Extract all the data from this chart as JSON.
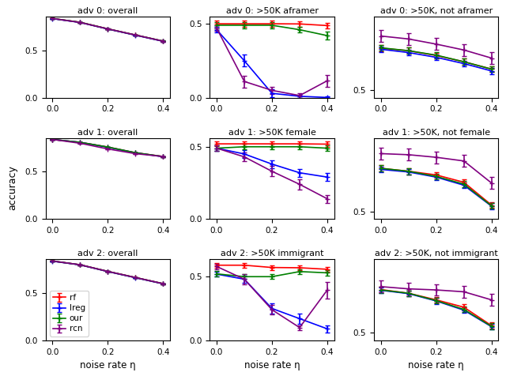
{
  "x": [
    0.0,
    0.1,
    0.2,
    0.3,
    0.4
  ],
  "titles": [
    [
      "adv 0: overall",
      "adv 0: >50K aframer",
      "adv 0: >50K, not aframer"
    ],
    [
      "adv 1: overall",
      "adv 1: >50K female",
      "adv 1: >50K, not female"
    ],
    [
      "adv 2: overall",
      "adv 2: >50K immigrant",
      "adv 2: >50K, not immigrant"
    ]
  ],
  "colors": [
    "red",
    "blue",
    "green",
    "purple"
  ],
  "labels": [
    "rf",
    "lreg",
    "our",
    "rcn"
  ],
  "ylabel": "accuracy",
  "xlabel": "noise rate η",
  "data": {
    "row0": {
      "col0": {
        "rf": {
          "y": [
            0.84,
            0.8,
            0.73,
            0.665,
            0.6
          ],
          "e": [
            0.004,
            0.004,
            0.004,
            0.004,
            0.004
          ]
        },
        "lreg": {
          "y": [
            0.838,
            0.798,
            0.728,
            0.663,
            0.598
          ],
          "e": [
            0.004,
            0.004,
            0.004,
            0.004,
            0.004
          ]
        },
        "our": {
          "y": [
            0.84,
            0.8,
            0.73,
            0.665,
            0.601
          ],
          "e": [
            0.004,
            0.004,
            0.004,
            0.004,
            0.004
          ]
        },
        "rcn": {
          "y": [
            0.84,
            0.798,
            0.73,
            0.665,
            0.6
          ],
          "e": [
            0.004,
            0.004,
            0.004,
            0.004,
            0.004
          ]
        }
      },
      "col1": {
        "rf": {
          "y": [
            0.5,
            0.5,
            0.5,
            0.499,
            0.488
          ],
          "e": [
            0.02,
            0.02,
            0.02,
            0.02,
            0.02
          ]
        },
        "lreg": {
          "y": [
            0.46,
            0.25,
            0.03,
            0.01,
            0.002
          ],
          "e": [
            0.02,
            0.04,
            0.025,
            0.01,
            0.01
          ]
        },
        "our": {
          "y": [
            0.49,
            0.49,
            0.49,
            0.46,
            0.42
          ],
          "e": [
            0.02,
            0.02,
            0.02,
            0.02,
            0.025
          ]
        },
        "rcn": {
          "y": [
            0.47,
            0.11,
            0.05,
            0.015,
            0.115
          ],
          "e": [
            0.02,
            0.04,
            0.025,
            0.015,
            0.04
          ]
        }
      },
      "col2": {
        "rf": {
          "y": [
            0.615,
            0.608,
            0.595,
            0.578,
            0.558
          ],
          "e": [
            0.008,
            0.008,
            0.008,
            0.008,
            0.008
          ]
        },
        "lreg": {
          "y": [
            0.612,
            0.603,
            0.59,
            0.573,
            0.553
          ],
          "e": [
            0.008,
            0.008,
            0.008,
            0.008,
            0.008
          ]
        },
        "our": {
          "y": [
            0.616,
            0.608,
            0.596,
            0.578,
            0.558
          ],
          "e": [
            0.008,
            0.008,
            0.008,
            0.008,
            0.008
          ]
        },
        "rcn": {
          "y": [
            0.648,
            0.64,
            0.626,
            0.61,
            0.588
          ],
          "e": [
            0.016,
            0.016,
            0.016,
            0.016,
            0.016
          ]
        }
      }
    },
    "row1": {
      "col0": {
        "rf": {
          "y": [
            0.84,
            0.81,
            0.76,
            0.7,
            0.66
          ],
          "e": [
            0.004,
            0.004,
            0.004,
            0.004,
            0.004
          ]
        },
        "lreg": {
          "y": [
            0.84,
            0.81,
            0.758,
            0.699,
            0.658
          ],
          "e": [
            0.004,
            0.004,
            0.004,
            0.004,
            0.004
          ]
        },
        "our": {
          "y": [
            0.84,
            0.81,
            0.76,
            0.7,
            0.66
          ],
          "e": [
            0.004,
            0.004,
            0.004,
            0.004,
            0.004
          ]
        },
        "rcn": {
          "y": [
            0.84,
            0.8,
            0.74,
            0.69,
            0.66
          ],
          "e": [
            0.004,
            0.004,
            0.004,
            0.004,
            0.004
          ]
        }
      },
      "col1": {
        "rf": {
          "y": [
            0.52,
            0.52,
            0.52,
            0.52,
            0.518
          ],
          "e": [
            0.018,
            0.018,
            0.018,
            0.018,
            0.018
          ]
        },
        "lreg": {
          "y": [
            0.49,
            0.45,
            0.38,
            0.32,
            0.29
          ],
          "e": [
            0.02,
            0.025,
            0.028,
            0.028,
            0.028
          ]
        },
        "our": {
          "y": [
            0.49,
            0.5,
            0.5,
            0.5,
            0.49
          ],
          "e": [
            0.02,
            0.02,
            0.02,
            0.02,
            0.02
          ]
        },
        "rcn": {
          "y": [
            0.49,
            0.43,
            0.33,
            0.24,
            0.14
          ],
          "e": [
            0.02,
            0.03,
            0.035,
            0.035,
            0.028
          ]
        }
      },
      "col2": {
        "rf": {
          "y": [
            0.618,
            0.61,
            0.6,
            0.58,
            0.518
          ],
          "e": [
            0.008,
            0.008,
            0.008,
            0.008,
            0.008
          ]
        },
        "lreg": {
          "y": [
            0.615,
            0.608,
            0.594,
            0.572,
            0.515
          ],
          "e": [
            0.008,
            0.008,
            0.008,
            0.008,
            0.008
          ]
        },
        "our": {
          "y": [
            0.618,
            0.61,
            0.596,
            0.575,
            0.516
          ],
          "e": [
            0.008,
            0.008,
            0.008,
            0.008,
            0.008
          ]
        },
        "rcn": {
          "y": [
            0.658,
            0.655,
            0.648,
            0.638,
            0.578
          ],
          "e": [
            0.016,
            0.016,
            0.016,
            0.016,
            0.016
          ]
        }
      }
    },
    "row2": {
      "col0": {
        "rf": {
          "y": [
            0.84,
            0.8,
            0.73,
            0.665,
            0.6
          ],
          "e": [
            0.004,
            0.004,
            0.004,
            0.004,
            0.004
          ]
        },
        "lreg": {
          "y": [
            0.838,
            0.799,
            0.728,
            0.663,
            0.598
          ],
          "e": [
            0.004,
            0.004,
            0.004,
            0.004,
            0.004
          ]
        },
        "our": {
          "y": [
            0.84,
            0.8,
            0.73,
            0.665,
            0.6
          ],
          "e": [
            0.004,
            0.004,
            0.004,
            0.004,
            0.004
          ]
        },
        "rcn": {
          "y": [
            0.84,
            0.8,
            0.73,
            0.665,
            0.6
          ],
          "e": [
            0.004,
            0.004,
            0.004,
            0.004,
            0.004
          ]
        }
      },
      "col1": {
        "rf": {
          "y": [
            0.59,
            0.59,
            0.572,
            0.57,
            0.558
          ],
          "e": [
            0.018,
            0.018,
            0.018,
            0.018,
            0.018
          ]
        },
        "lreg": {
          "y": [
            0.52,
            0.48,
            0.25,
            0.17,
            0.09
          ],
          "e": [
            0.02,
            0.028,
            0.038,
            0.038,
            0.028
          ]
        },
        "our": {
          "y": [
            0.522,
            0.5,
            0.5,
            0.54,
            0.53
          ],
          "e": [
            0.02,
            0.02,
            0.02,
            0.02,
            0.02
          ]
        },
        "rcn": {
          "y": [
            0.58,
            0.48,
            0.24,
            0.1,
            0.395
          ],
          "e": [
            0.02,
            0.038,
            0.038,
            0.018,
            0.065
          ]
        }
      },
      "col2": {
        "rf": {
          "y": [
            0.618,
            0.608,
            0.59,
            0.57,
            0.52
          ],
          "e": [
            0.008,
            0.008,
            0.008,
            0.008,
            0.008
          ]
        },
        "lreg": {
          "y": [
            0.616,
            0.607,
            0.587,
            0.562,
            0.517
          ],
          "e": [
            0.008,
            0.008,
            0.008,
            0.008,
            0.008
          ]
        },
        "our": {
          "y": [
            0.617,
            0.608,
            0.588,
            0.564,
            0.518
          ],
          "e": [
            0.008,
            0.008,
            0.008,
            0.008,
            0.008
          ]
        },
        "rcn": {
          "y": [
            0.626,
            0.62,
            0.617,
            0.612,
            0.59
          ],
          "e": [
            0.016,
            0.016,
            0.016,
            0.016,
            0.016
          ]
        }
      }
    }
  }
}
